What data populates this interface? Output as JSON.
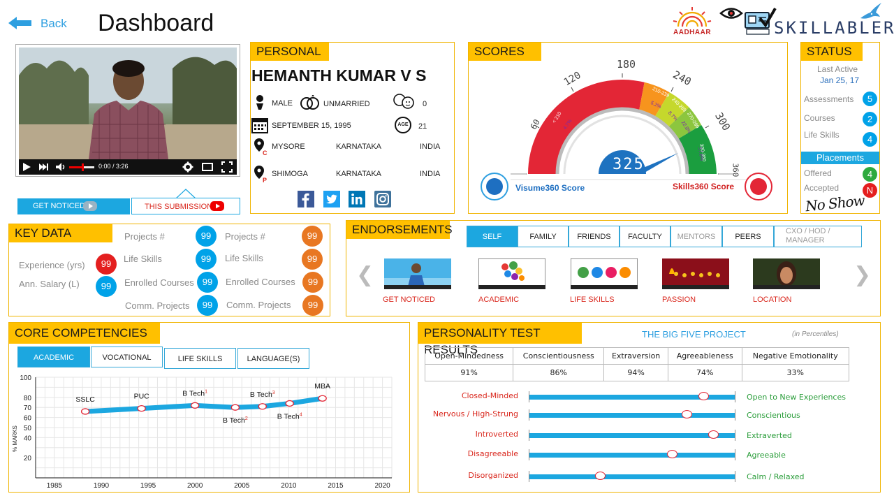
{
  "header": {
    "back_label": "Back",
    "title": "Dashboard",
    "aadhaar_label": "AADHAAR",
    "brand": "SKILLABLERS"
  },
  "video": {
    "time": "0:00 / 3:26",
    "get_noticed": "GET NOTICED",
    "this_submission": "THIS SUBMISSION"
  },
  "personal": {
    "title": "PERSONAL",
    "name": "HEMANTH KUMAR V S",
    "gender": "MALE",
    "marital": "UNMARRIED",
    "children": "0",
    "dob": "SEPTEMBER  15, 1995",
    "age_label": "AGE",
    "age": "21",
    "current": {
      "tag": "C",
      "city": "MYSORE",
      "state": "KARNATAKA",
      "country": "INDIA"
    },
    "permanent": {
      "tag": "P",
      "city": "SHIMOGA",
      "state": "KARNATAKA",
      "country": "INDIA"
    }
  },
  "scores": {
    "title": "SCORES",
    "gauge_ticks": [
      "60",
      "120",
      "180",
      "240",
      "300",
      "360"
    ],
    "bands": [
      "< 210",
      "210-239",
      "240-269",
      "270-299",
      "300-360"
    ],
    "band_pcts": [
      "4.7%",
      "5.2%",
      "8.7%",
      "22.8%",
      "57.6%"
    ],
    "value": "325",
    "left_label": "Visume360  Score",
    "right_label": "Skills360  Score"
  },
  "status": {
    "title": "STATUS",
    "last_active_label": "Last Active",
    "last_active_date": "Jan 25, 17",
    "items": [
      {
        "label": "Assessments",
        "value": "5"
      },
      {
        "label": "Courses",
        "value": "2"
      },
      {
        "label": "Life Skills",
        "value": "4"
      }
    ],
    "placements_label": "Placements",
    "offered_label": "Offered",
    "offered_value": "4",
    "accepted_label": "Accepted",
    "accepted_value": "N",
    "signature": "No Show"
  },
  "key_data": {
    "title": "KEY DATA",
    "experience_label": "Experience (yrs)",
    "experience_value": "99",
    "salary_label": "Ann. Salary (L)",
    "salary_value": "99",
    "col1": [
      {
        "label": "Projects #",
        "value": "99"
      },
      {
        "label": "Life Skills",
        "value": "99"
      },
      {
        "label": "Enrolled Courses",
        "value": "99"
      },
      {
        "label": "Comm. Projects",
        "value": "99"
      }
    ],
    "col2": [
      {
        "label": "Projects #",
        "value": "99"
      },
      {
        "label": "Life Skills",
        "value": "99"
      },
      {
        "label": "Enrolled Courses",
        "value": "99"
      },
      {
        "label": "Comm. Projects",
        "value": "99"
      }
    ]
  },
  "endorsements": {
    "title": "ENDORSEMENTS",
    "tabs": [
      "SELF",
      "FAMILY",
      "FRIENDS",
      "FACULTY",
      "MENTORS",
      "PEERS",
      "CXO / HOD / MANAGER"
    ],
    "items": [
      "GET NOTICED",
      "ACADEMIC",
      "LIFE SKILLS",
      "PASSION",
      "LOCATION"
    ],
    "prev": "❮",
    "next": "❯"
  },
  "core": {
    "title": "CORE COMPETENCIES",
    "tabs": [
      "ACADEMIC",
      "VOCATIONAL",
      "LIFE SKILLS",
      "LANGUAGE(S)"
    ]
  },
  "chart_data": {
    "type": "line",
    "ylabel": "% MARKS",
    "xlabel": "",
    "x_ticks": [
      "1985",
      "1990",
      "1995",
      "2000",
      "2005",
      "2010",
      "2015",
      "2020"
    ],
    "y_ticks": [
      "100",
      "80",
      "70",
      "60",
      "50",
      "40",
      "20"
    ],
    "xlim": [
      1983,
      2021
    ],
    "ylim": [
      0,
      100
    ],
    "points": [
      {
        "label": "SSLC",
        "sup": "",
        "x": 1988.3,
        "y": 66
      },
      {
        "label": "PUC",
        "sup": "",
        "x": 1994.3,
        "y": 69
      },
      {
        "label": "B Tech",
        "sup": "1",
        "x": 2000,
        "y": 72
      },
      {
        "label": "B Tech",
        "sup": "2",
        "x": 2004.3,
        "y": 70
      },
      {
        "label": "B Tech",
        "sup": "3",
        "x": 2007.2,
        "y": 71
      },
      {
        "label": "B Tech",
        "sup": "4",
        "x": 2010.1,
        "y": 74
      },
      {
        "label": "MBA",
        "sup": "",
        "x": 2013.6,
        "y": 79
      }
    ]
  },
  "personality": {
    "title": "PERSONALITY TEST RESULTS",
    "subtitle": "THE BIG FIVE PROJECT",
    "note": "(in Percentiles)",
    "headers": [
      "Open-Mindedness",
      "Conscientiousness",
      "Extraversion",
      "Agreeableness",
      "Negative Emotionality"
    ],
    "values": [
      "91%",
      "86%",
      "94%",
      "74%",
      "33%"
    ],
    "traits": [
      {
        "low": "Closed-Minded",
        "high": "Open to New Experiences",
        "level": 0.84
      },
      {
        "low": "Nervous / High-Strung",
        "high": "Conscientious",
        "level": 0.76
      },
      {
        "low": "Introverted",
        "high": "Extraverted",
        "level": 0.89
      },
      {
        "low": "Disagreeable",
        "high": "Agreeable",
        "level": 0.69
      },
      {
        "low": "Disorganized",
        "high": "Calm / Relaxed",
        "level": 0.34
      }
    ]
  }
}
